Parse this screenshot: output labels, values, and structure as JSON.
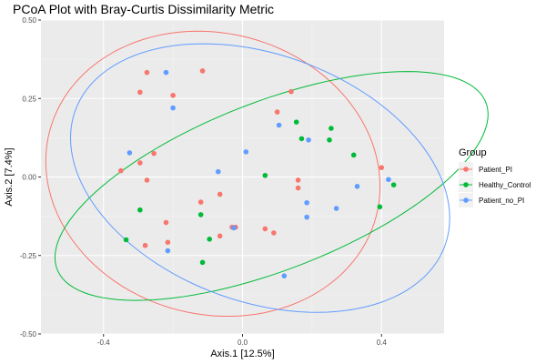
{
  "chart_data": {
    "type": "scatter",
    "title": "PCoA Plot with Bray-Curtis Dissimilarity Metric",
    "xlabel": "Axis.1   [12.5%]",
    "ylabel": "Axis.2   [7.4%]",
    "xlim": [
      -0.58,
      0.58
    ],
    "ylim": [
      -0.5,
      0.5
    ],
    "x_ticks": [
      -0.4,
      0.0,
      0.4
    ],
    "x_tick_labels": [
      "-0.4",
      "0.0",
      "0.4"
    ],
    "y_ticks": [
      -0.5,
      -0.25,
      0.0,
      0.25,
      0.5
    ],
    "y_tick_labels": [
      "-0.50",
      "-0.25",
      "0.00",
      "0.25",
      "0.50"
    ],
    "background": "#ebebeb",
    "grid": true,
    "legend": {
      "title": "Group",
      "position": "right"
    },
    "series": [
      {
        "name": "Patient_PI",
        "color": "#F8766D",
        "points": [
          [
            -0.275,
            0.333
          ],
          [
            -0.115,
            0.338
          ],
          [
            -0.295,
            0.27
          ],
          [
            -0.2,
            0.26
          ],
          [
            0.14,
            0.272
          ],
          [
            0.1,
            0.207
          ],
          [
            -0.255,
            0.075
          ],
          [
            -0.295,
            0.045
          ],
          [
            -0.35,
            0.02
          ],
          [
            -0.275,
            -0.01
          ],
          [
            0.16,
            -0.01
          ],
          [
            0.4,
            0.03
          ],
          [
            -0.065,
            -0.055
          ],
          [
            0.16,
            -0.035
          ],
          [
            -0.12,
            -0.08
          ],
          [
            -0.22,
            -0.145
          ],
          [
            -0.02,
            -0.16
          ],
          [
            -0.03,
            -0.16
          ],
          [
            0.065,
            -0.165
          ],
          [
            0.09,
            -0.178
          ],
          [
            -0.215,
            -0.208
          ],
          [
            -0.28,
            -0.218
          ],
          [
            -0.065,
            -0.188
          ]
        ]
      },
      {
        "name": "Healthy_Control",
        "color": "#00BA38",
        "points": [
          [
            0.155,
            0.175
          ],
          [
            0.255,
            0.155
          ],
          [
            0.17,
            0.122
          ],
          [
            0.25,
            0.118
          ],
          [
            0.32,
            0.07
          ],
          [
            0.065,
            0.005
          ],
          [
            0.435,
            -0.025
          ],
          [
            0.395,
            -0.095
          ],
          [
            -0.295,
            -0.105
          ],
          [
            -0.12,
            -0.12
          ],
          [
            -0.335,
            -0.2
          ],
          [
            -0.095,
            -0.198
          ],
          [
            -0.115,
            -0.272
          ]
        ]
      },
      {
        "name": "Patient_no_PI",
        "color": "#619CFF",
        "points": [
          [
            -0.22,
            0.333
          ],
          [
            -0.2,
            0.22
          ],
          [
            0.105,
            0.165
          ],
          [
            0.19,
            0.118
          ],
          [
            -0.325,
            0.077
          ],
          [
            0.01,
            0.08
          ],
          [
            -0.07,
            0.017
          ],
          [
            0.42,
            -0.008
          ],
          [
            0.33,
            -0.03
          ],
          [
            0.185,
            -0.082
          ],
          [
            0.185,
            -0.128
          ],
          [
            0.27,
            -0.1
          ],
          [
            -0.025,
            -0.162
          ],
          [
            -0.215,
            -0.235
          ],
          [
            0.12,
            -0.315
          ]
        ]
      }
    ]
  }
}
